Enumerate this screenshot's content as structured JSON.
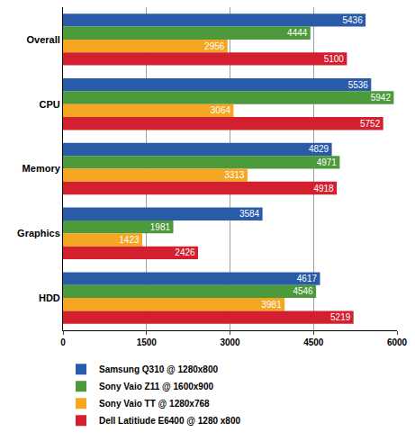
{
  "chart_data": {
    "type": "bar",
    "orientation": "horizontal",
    "categories": [
      "Overall",
      "CPU",
      "Memory",
      "Graphics",
      "HDD"
    ],
    "series": [
      {
        "name": "Samsung Q310 @ 1280x800",
        "color": "#2a5ba8",
        "values": [
          5436,
          5536,
          4829,
          3584,
          4617
        ]
      },
      {
        "name": "Sony Vaio Z11 @ 1600x900",
        "color": "#4c9a3b",
        "values": [
          4444,
          5942,
          4971,
          1981,
          4546
        ]
      },
      {
        "name": "Sony Vaio TT @ 1280x768",
        "color": "#f5a623",
        "values": [
          2956,
          3064,
          3313,
          1423,
          3981
        ]
      },
      {
        "name": "Dell Latitiude E6400 @ 1280 x800",
        "color": "#d3202f",
        "values": [
          5100,
          5752,
          4918,
          2426,
          5219
        ]
      }
    ],
    "xlim": [
      0,
      6000
    ],
    "xticks": [
      0,
      1500,
      3000,
      4500,
      6000
    ],
    "grid": true,
    "data_labels": true,
    "legend": "bottom"
  }
}
